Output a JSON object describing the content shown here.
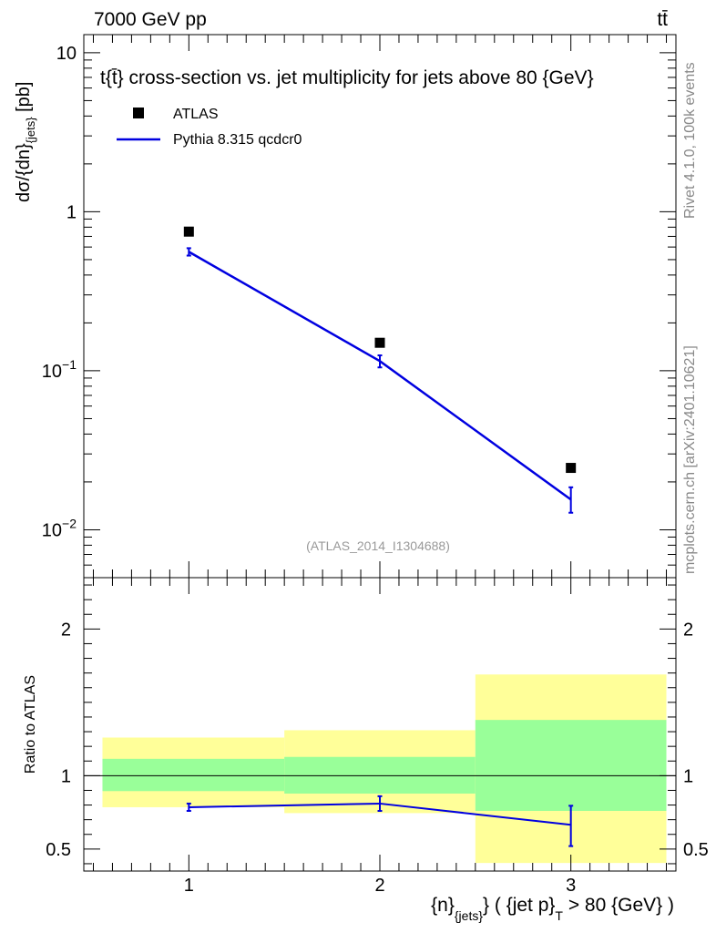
{
  "header": {
    "energy_label": "7000 GeV pp",
    "process_label": "tt̄"
  },
  "side_labels": {
    "rivet": "Rivet 4.1.0,  100k events",
    "source": "mcplots.cern.ch [arXiv:2401.10621]"
  },
  "watermark": "(ATLAS_2014_I1304688)",
  "colors": {
    "mc_line": "#0000e0",
    "data_marker": "#000000",
    "band_inner": "#99ff99",
    "band_outer": "#ffff99",
    "watermark": "#999999"
  },
  "chart_data": [
    {
      "id": "main",
      "type": "scatter",
      "title": "t{t̄} cross-section vs. jet multiplicity for jets above 80 {GeV}",
      "ylabel_main": "dσ/{dn}",
      "ylabel_sub": "{jets}",
      "ylabel_unit": " [pb]",
      "yscale": "log",
      "ylim": [
        0.005,
        13
      ],
      "xlim": [
        0.45,
        3.55
      ],
      "yticks": [
        {
          "value": 10,
          "base": "10",
          "exp": ""
        },
        {
          "value": 1,
          "base": "1",
          "exp": ""
        },
        {
          "value": 0.1,
          "base": "10",
          "exp": "−1"
        },
        {
          "value": 0.01,
          "base": "10",
          "exp": "−2"
        }
      ],
      "legend": [
        {
          "name": "ATLAS",
          "kind": "marker"
        },
        {
          "name": "Pythia 8.315 qcdcr0",
          "kind": "line"
        }
      ],
      "series": [
        {
          "name": "ATLAS",
          "x": [
            1,
            2,
            3
          ],
          "y": [
            0.75,
            0.15,
            0.0245
          ]
        },
        {
          "name": "Pythia 8.315 qcdcr0",
          "x": [
            1,
            2,
            3
          ],
          "y": [
            0.56,
            0.115,
            0.0155
          ],
          "yerr_low": [
            0.53,
            0.105,
            0.0128
          ],
          "yerr_high": [
            0.59,
            0.125,
            0.0185
          ]
        }
      ]
    },
    {
      "id": "ratio",
      "type": "line",
      "ylabel": "Ratio to ATLAS",
      "ylim": [
        0.35,
        2.35
      ],
      "xlim": [
        0.45,
        3.55
      ],
      "yticks": [
        {
          "value": 2,
          "label": "2"
        },
        {
          "value": 1,
          "label": "1"
        },
        {
          "value": 0.5,
          "label": "0.5"
        }
      ],
      "xticks": [
        {
          "value": 1,
          "label": "1"
        },
        {
          "value": 2,
          "label": "2"
        },
        {
          "value": 3,
          "label": "3"
        }
      ],
      "xlabel": {
        "p1": "{n}",
        "s1": "{jets}",
        "p2": "} ( {jet p}",
        "s2": "T",
        "p3": " > 80 {GeV} )"
      },
      "reference": 1,
      "bands": [
        {
          "x0": 0.5,
          "x1": 1.5,
          "inner": [
            0.895,
            1.115
          ],
          "outer": [
            0.785,
            1.26
          ]
        },
        {
          "x0": 1.5,
          "x1": 2.5,
          "inner": [
            0.878,
            1.128
          ],
          "outer": [
            0.745,
            1.31
          ]
        },
        {
          "x0": 2.5,
          "x1": 3.5,
          "inner": [
            0.76,
            1.38
          ],
          "outer": [
            0.405,
            1.69
          ]
        }
      ],
      "series": [
        {
          "name": "Pythia 8.315 qcdcr0",
          "x": [
            1,
            2,
            3
          ],
          "y": [
            0.785,
            0.81,
            0.665
          ],
          "yerr_low": [
            0.76,
            0.76,
            0.52
          ],
          "yerr_high": [
            0.81,
            0.86,
            0.795
          ]
        }
      ]
    }
  ]
}
